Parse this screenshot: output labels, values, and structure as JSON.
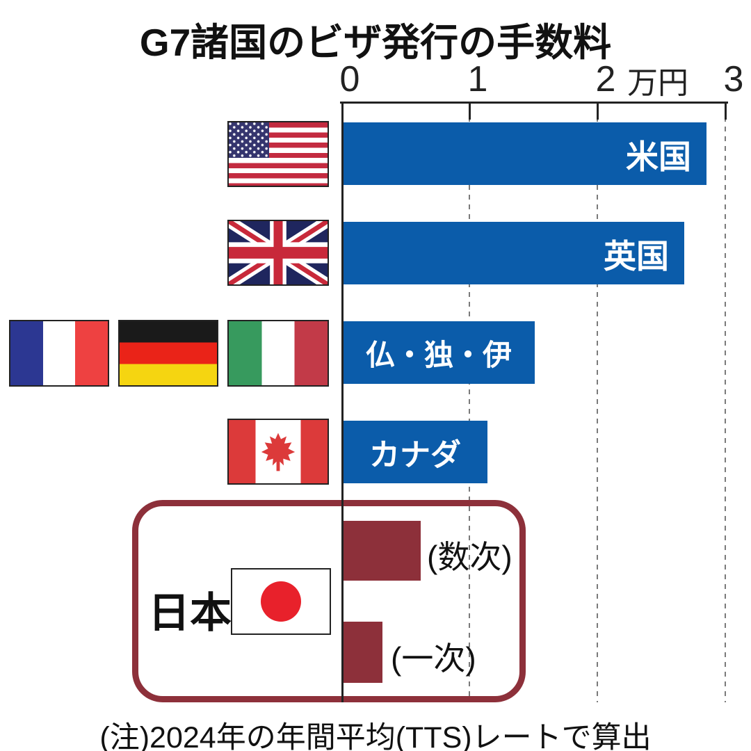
{
  "title": "G7諸国のビザ発行の手数料",
  "note": "(注)2024年の年間平均(TTS)レートで算出",
  "colors": {
    "bar_blue": "#0b5caa",
    "bar_maroon": "#8d303a",
    "japan_box_border": "#8d303a",
    "axis": "#222222",
    "gridline": "#7a7a7a"
  },
  "japan_group": {
    "label": "日本"
  },
  "icons": [
    "us-flag",
    "uk-flag",
    "france-flag",
    "germany-flag",
    "italy-flag",
    "canada-flag",
    "japan-flag"
  ],
  "chart_data": {
    "type": "bar",
    "orientation": "horizontal",
    "title": "G7諸国のビザ発行の手数料",
    "xlabel_unit": "万円",
    "xlim": [
      0,
      3
    ],
    "xticks": [
      0,
      1,
      2,
      3
    ],
    "grid": "dashed vertical gridlines at 1, 2, 3",
    "legend": "none",
    "bars": [
      {
        "label": "米国",
        "value": 2.84,
        "color": "#0b5caa",
        "label_position": "inside-right"
      },
      {
        "label": "英国",
        "value": 2.67,
        "color": "#0b5caa",
        "label_position": "inside-right"
      },
      {
        "label": "仏・独・伊",
        "value": 1.5,
        "color": "#0b5caa",
        "label_position": "inside-center"
      },
      {
        "label": "カナダ",
        "value": 1.13,
        "color": "#0b5caa",
        "label_position": "inside-center"
      },
      {
        "label": "(数次)",
        "value": 0.61,
        "color": "#8d303a",
        "label_position": "outside-right",
        "group": "日本"
      },
      {
        "label": "(一次)",
        "value": 0.31,
        "color": "#8d303a",
        "label_position": "outside-right",
        "group": "日本"
      }
    ]
  }
}
